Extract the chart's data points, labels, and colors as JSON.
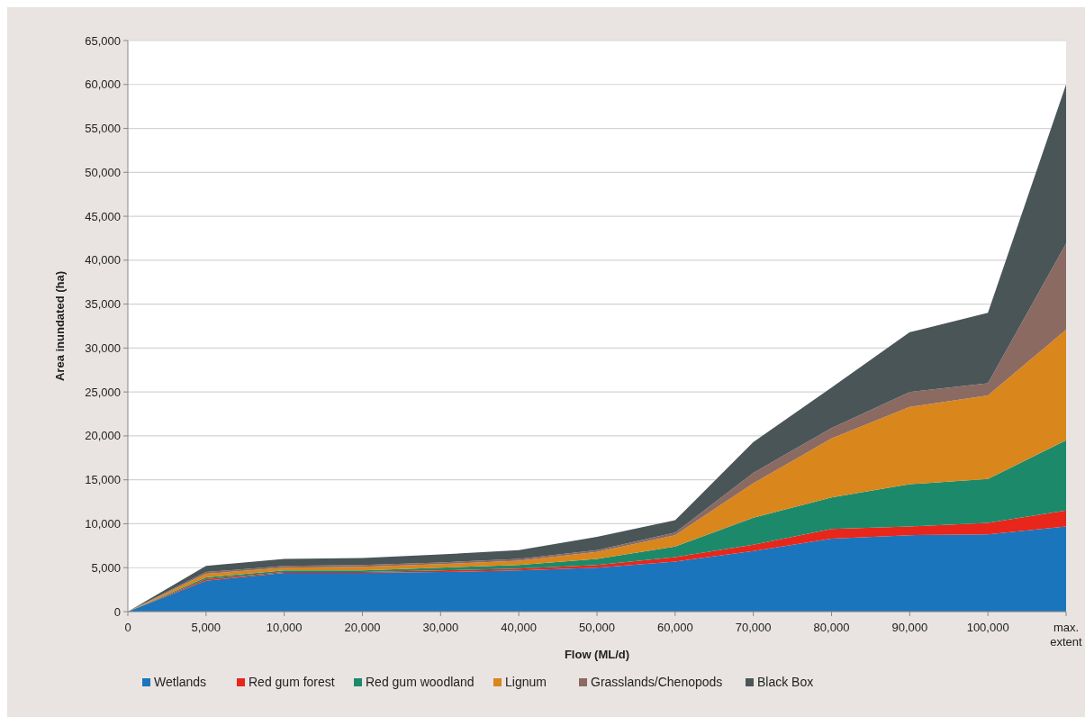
{
  "chart_data": {
    "type": "area",
    "stacked": true,
    "xlabel": "Flow (ML/d)",
    "ylabel": "Area inundated (ha)",
    "categories": [
      "0",
      "5,000",
      "10,000",
      "20,000",
      "30,000",
      "40,000",
      "50,000",
      "60,000",
      "70,000",
      "80,000",
      "90,000",
      "100,000",
      "max. extent"
    ],
    "ylim": [
      0,
      65000
    ],
    "yticks": [
      {
        "value": 0,
        "label": "0"
      },
      {
        "value": 5000,
        "label": "5,000"
      },
      {
        "value": 10000,
        "label": "10,000"
      },
      {
        "value": 15000,
        "label": "15,000"
      },
      {
        "value": 20000,
        "label": "20,000"
      },
      {
        "value": 25000,
        "label": "25,000"
      },
      {
        "value": 30000,
        "label": "30,000"
      },
      {
        "value": 35000,
        "label": "35,000"
      },
      {
        "value": 40000,
        "label": "40,000"
      },
      {
        "value": 45000,
        "label": "45,000"
      },
      {
        "value": 50000,
        "label": "50,000"
      },
      {
        "value": 55000,
        "label": "55,000"
      },
      {
        "value": 60000,
        "label": "60,000"
      },
      {
        "value": 65000,
        "label": "65,000"
      }
    ],
    "grid": "y",
    "legend": "bottom",
    "series": [
      {
        "name": "Wetlands",
        "color": "#1a75bc",
        "values": [
          0,
          3500,
          4400,
          4400,
          4500,
          4700,
          5000,
          5700,
          6900,
          8300,
          8700,
          8800,
          9700
        ]
      },
      {
        "name": "Red gum forest",
        "color": "#e8261c",
        "values": [
          0,
          200,
          100,
          100,
          200,
          200,
          300,
          500,
          700,
          1100,
          1000,
          1300,
          1800
        ]
      },
      {
        "name": "Red gum woodland",
        "color": "#1c8a6a",
        "values": [
          0,
          200,
          200,
          200,
          300,
          400,
          700,
          1200,
          3100,
          3600,
          4800,
          5000,
          8000
        ]
      },
      {
        "name": "Lignum",
        "color": "#d9861c",
        "values": [
          0,
          400,
          300,
          400,
          400,
          500,
          800,
          1300,
          3900,
          6700,
          8800,
          9500,
          12600
        ]
      },
      {
        "name": "Grasslands/Chenopods",
        "color": "#8b6a62",
        "values": [
          0,
          200,
          200,
          200,
          200,
          200,
          200,
          300,
          1200,
          1200,
          1700,
          1400,
          9800
        ]
      },
      {
        "name": "Black Box",
        "color": "#4a5558",
        "values": [
          0,
          700,
          800,
          800,
          900,
          1000,
          1500,
          1400,
          3500,
          4600,
          6800,
          8000,
          18100
        ]
      }
    ]
  }
}
